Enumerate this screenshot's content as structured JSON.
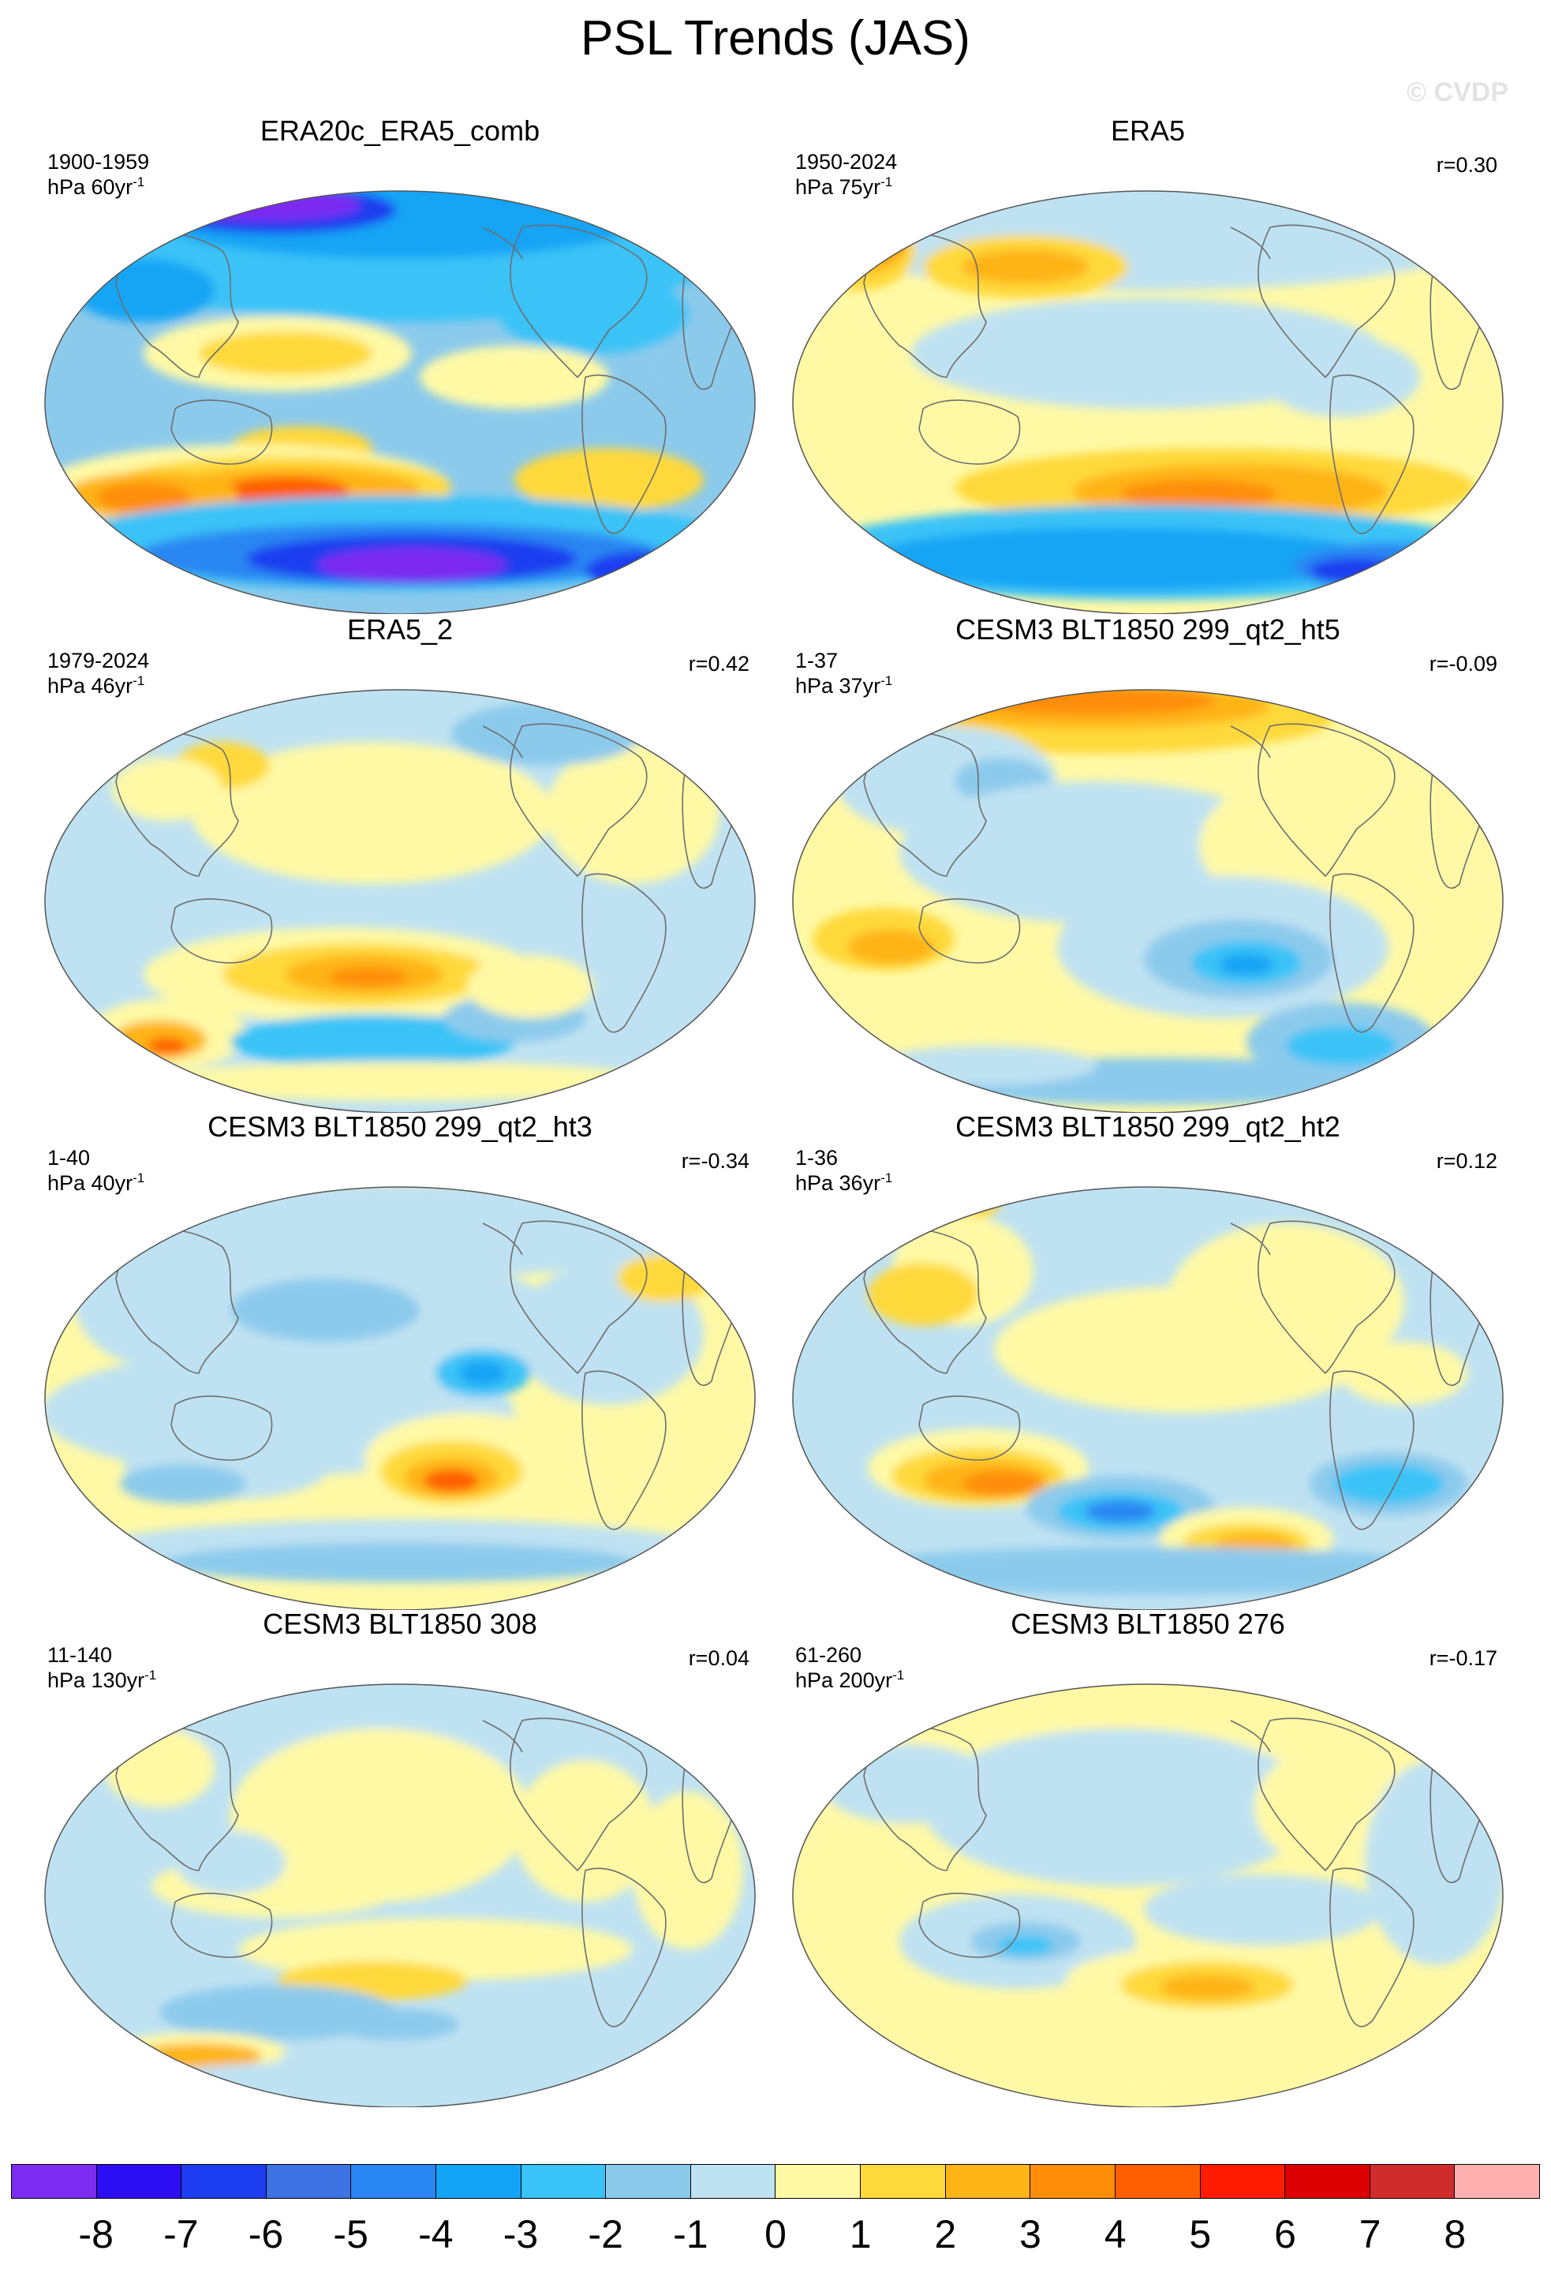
{
  "title": "PSL Trends (JAS)",
  "watermark": "© CVDP",
  "panels": [
    {
      "title": "ERA20c_ERA5_comb",
      "years": "1900-1959",
      "units_prefix": "hPa 60yr",
      "units_exp": "-1",
      "r": "",
      "theme": "a"
    },
    {
      "title": "ERA5",
      "years": "1950-2024",
      "units_prefix": "hPa 75yr",
      "units_exp": "-1",
      "r": "r=0.30",
      "theme": "b"
    },
    {
      "title": "ERA5_2",
      "years": "1979-2024",
      "units_prefix": "hPa 46yr",
      "units_exp": "-1",
      "r": "r=0.42",
      "theme": "c"
    },
    {
      "title": "CESM3 BLT1850 299_qt2_ht5",
      "years": "1-37",
      "units_prefix": "hPa 37yr",
      "units_exp": "-1",
      "r": "r=-0.09",
      "theme": "d"
    },
    {
      "title": "CESM3 BLT1850 299_qt2_ht3",
      "years": "1-40",
      "units_prefix": "hPa 40yr",
      "units_exp": "-1",
      "r": "r=-0.34",
      "theme": "e"
    },
    {
      "title": "CESM3 BLT1850 299_qt2_ht2",
      "years": "1-36",
      "units_prefix": "hPa 36yr",
      "units_exp": "-1",
      "r": "r=0.12",
      "theme": "f"
    },
    {
      "title": "CESM3 BLT1850 308",
      "years": "11-140",
      "units_prefix": "hPa 130yr",
      "units_exp": "-1",
      "r": "r=0.04",
      "theme": "g"
    },
    {
      "title": "CESM3 BLT1850 276",
      "years": "61-260",
      "units_prefix": "hPa 200yr",
      "units_exp": "-1",
      "r": "r=-0.17",
      "theme": "h"
    }
  ],
  "colorbar": {
    "colors": [
      "#7b2cf0",
      "#2e0ef5",
      "#1d3ef0",
      "#3d73e2",
      "#2a86f2",
      "#14a4f5",
      "#3ac3f7",
      "#8ccaec",
      "#bfe2f2",
      "#fff9a6",
      "#ffd93a",
      "#ffb417",
      "#ff8d09",
      "#ff5f00",
      "#ff1c00",
      "#dc0000",
      "#d12c2c",
      "#ffb0b0"
    ],
    "labels": [
      "-8",
      "-7",
      "-6",
      "-5",
      "-4",
      "-3",
      "-2",
      "-1",
      "0",
      "1",
      "2",
      "3",
      "4",
      "5",
      "6",
      "7",
      "8"
    ]
  }
}
